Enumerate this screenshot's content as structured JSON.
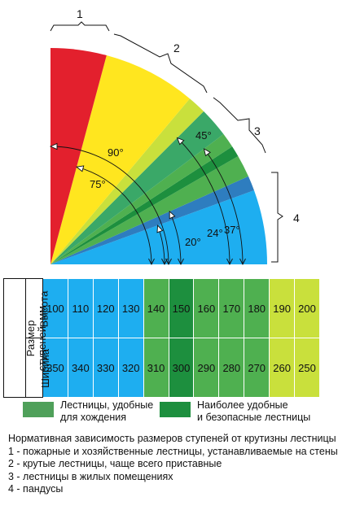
{
  "diagram": {
    "categories": [
      "1",
      "2",
      "3",
      "4"
    ],
    "angles": [
      {
        "label": "90°",
        "value": 90
      },
      {
        "label": "75°",
        "value": 75
      },
      {
        "label": "45°",
        "value": 45
      },
      {
        "label": "37°",
        "value": 37
      },
      {
        "label": "24°",
        "value": 24
      },
      {
        "label": "20°",
        "value": 20
      }
    ],
    "segments": [
      {
        "from": 0,
        "to": 20,
        "color": "#1eaef0"
      },
      {
        "from": 20,
        "to": 24,
        "color": "#2e7dbf"
      },
      {
        "from": 24,
        "to": 30,
        "color": "#4fb050"
      },
      {
        "from": 30,
        "to": 33,
        "color": "#1d8f3e"
      },
      {
        "from": 33,
        "to": 37,
        "color": "#4fb050"
      },
      {
        "from": 37,
        "to": 45,
        "color": "#3aa868"
      },
      {
        "from": 45,
        "to": 50,
        "color": "#c9e03c"
      },
      {
        "from": 50,
        "to": 75,
        "color": "#ffe61f"
      },
      {
        "from": 75,
        "to": 90,
        "color": "#e3202d"
      }
    ]
  },
  "table": {
    "row_group_label_line1": "Размер",
    "row_group_label_line2": "ступеней ,мм",
    "height_label": "Высота",
    "width_label": "Ширина",
    "heights": [
      "100",
      "110",
      "120",
      "130",
      "140",
      "150",
      "160",
      "170",
      "180",
      "190",
      "200"
    ],
    "widths": [
      "350",
      "340",
      "330",
      "320",
      "310",
      "300",
      "290",
      "280",
      "270",
      "260",
      "250"
    ],
    "column_colors": [
      "#1eaef0",
      "#1eaef0",
      "#1eaef0",
      "#1eaef0",
      "#4fb050",
      "#1d8f3e",
      "#4fb050",
      "#4fb050",
      "#4fb050",
      "#c9e03c",
      "#c9e03c"
    ]
  },
  "legend": [
    {
      "color": "#4fa05a",
      "line1": "Лестницы, удобные",
      "line2": "для хождения"
    },
    {
      "color": "#1d8f3e",
      "line1": "Наиболее удобные",
      "line2": "и безопасные лестницы"
    }
  ],
  "notes": {
    "title": "Нормативная зависимость размеров ступеней от крутизны лестницы",
    "items": [
      "1 - пожарные и хозяйственные лестницы, устанавливаемые на стены",
      "2 - крутые лестницы, чаще всего приставные",
      "3 - лестницы в жилых помещениях",
      "4 - пандусы"
    ]
  }
}
